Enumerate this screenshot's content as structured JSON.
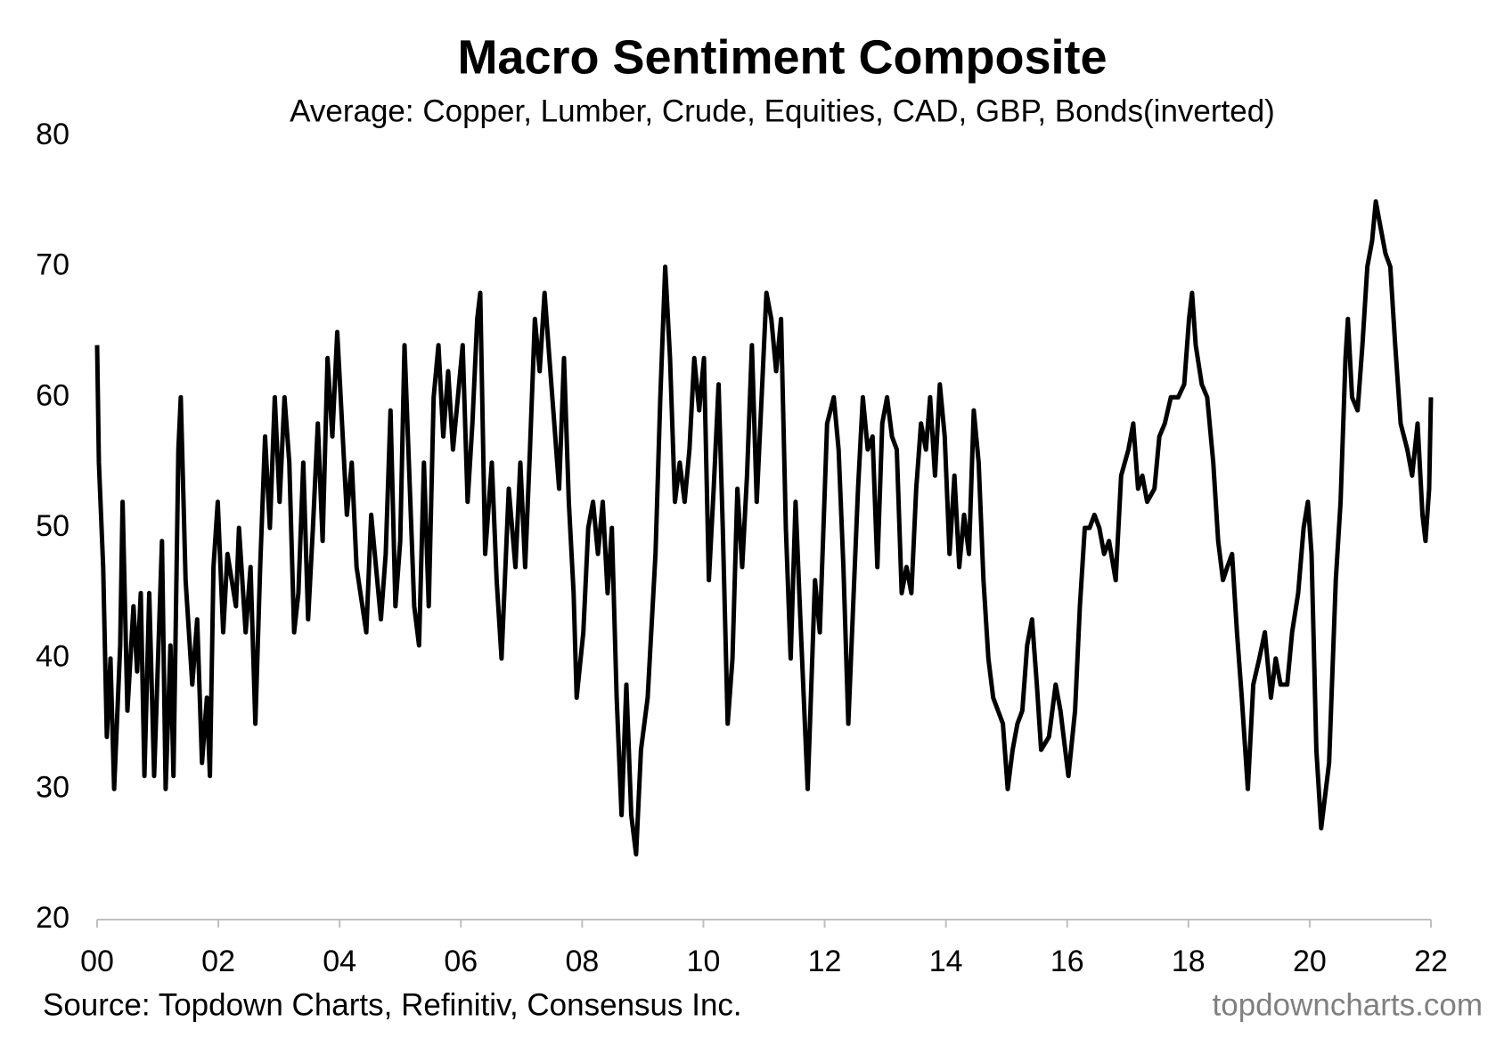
{
  "chart_data": {
    "type": "line",
    "title": "Macro Sentiment Composite",
    "subtitle": "Average:  Copper, Lumber, Crude, Equities, CAD, GBP, Bonds(inverted)",
    "source": "Source: Topdown Charts, Refinitiv, Consensus Inc.",
    "watermark": "topdowncharts.com",
    "xlim": [
      2000,
      2022
    ],
    "ylim": [
      20,
      80
    ],
    "yticks": [
      20,
      30,
      40,
      50,
      60,
      70,
      80
    ],
    "xticks": [
      {
        "value": 2000,
        "label": "00"
      },
      {
        "value": 2002,
        "label": "02"
      },
      {
        "value": 2004,
        "label": "04"
      },
      {
        "value": 2006,
        "label": "06"
      },
      {
        "value": 2008,
        "label": "08"
      },
      {
        "value": 2010,
        "label": "10"
      },
      {
        "value": 2012,
        "label": "12"
      },
      {
        "value": 2014,
        "label": "14"
      },
      {
        "value": 2016,
        "label": "16"
      },
      {
        "value": 2018,
        "label": "18"
      },
      {
        "value": 2020,
        "label": "20"
      },
      {
        "value": 2022,
        "label": "22"
      }
    ],
    "x": [
      2000,
      2000.03,
      2000.1,
      2000.16,
      2000.22,
      2000.28,
      2000.38,
      2000.42,
      2000.5,
      2000.6,
      2000.66,
      2000.72,
      2000.78,
      2000.86,
      2000.94,
      2001.07,
      2001.13,
      2001.21,
      2001.26,
      2001.34,
      2001.38,
      2001.46,
      2001.57,
      2001.65,
      2001.73,
      2001.81,
      2001.86,
      2001.92,
      2001.99,
      2002.08,
      2002.15,
      2002.29,
      2002.34,
      2002.45,
      2002.53,
      2002.61,
      2002.69,
      2002.77,
      2002.85,
      2002.93,
      2003.01,
      2003.09,
      2003.17,
      2003.25,
      2003.32,
      2003.4,
      2003.48,
      2003.56,
      2003.64,
      2003.72,
      2003.8,
      2003.88,
      2003.96,
      2004.04,
      2004.12,
      2004.2,
      2004.28,
      2004.44,
      2004.52,
      2004.6,
      2004.68,
      2004.76,
      2004.84,
      2004.92,
      2005.0,
      2005.07,
      2005.23,
      2005.31,
      2005.39,
      2005.47,
      2005.55,
      2005.63,
      2005.71,
      2005.79,
      2005.87,
      2005.95,
      2006.03,
      2006.11,
      2006.19,
      2006.27,
      2006.32,
      2006.4,
      2006.51,
      2006.59,
      2006.67,
      2006.79,
      2006.9,
      2006.98,
      2007.06,
      2007.14,
      2007.22,
      2007.3,
      2007.38,
      2007.46,
      2007.54,
      2007.62,
      2007.7,
      2007.78,
      2007.86,
      2007.91,
      2008.02,
      2008.1,
      2008.18,
      2008.26,
      2008.34,
      2008.42,
      2008.49,
      2008.57,
      2008.65,
      2008.73,
      2008.81,
      2008.89,
      2008.97,
      2009.08,
      2009.21,
      2009.29,
      2009.37,
      2009.45,
      2009.53,
      2009.61,
      2009.69,
      2009.77,
      2009.85,
      2009.93,
      2010.01,
      2010.09,
      2010.17,
      2010.25,
      2010.32,
      2010.4,
      2010.48,
      2010.56,
      2010.64,
      2010.72,
      2010.8,
      2010.88,
      2010.96,
      2011.04,
      2011.12,
      2011.2,
      2011.28,
      2011.36,
      2011.44,
      2011.52,
      2011.6,
      2011.72,
      2011.84,
      2011.92,
      2012.04,
      2012.15,
      2012.23,
      2012.31,
      2012.39,
      2012.47,
      2012.55,
      2012.63,
      2012.71,
      2012.79,
      2012.87,
      2012.95,
      2013.03,
      2013.11,
      2013.19,
      2013.27,
      2013.35,
      2013.43,
      2013.51,
      2013.59,
      2013.67,
      2013.74,
      2013.82,
      2013.9,
      2013.98,
      2014.06,
      2014.14,
      2014.22,
      2014.3,
      2014.38,
      2014.46,
      2014.54,
      2014.62,
      2014.7,
      2014.78,
      2014.94,
      2015.02,
      2015.1,
      2015.18,
      2015.26,
      2015.34,
      2015.42,
      2015.5,
      2015.57,
      2015.7,
      2015.81,
      2015.89,
      2016.02,
      2016.13,
      2016.21,
      2016.29,
      2016.37,
      2016.45,
      2016.53,
      2016.61,
      2016.69,
      2016.8,
      2016.89,
      2017.01,
      2017.09,
      2017.17,
      2017.24,
      2017.32,
      2017.44,
      2017.52,
      2017.61,
      2017.71,
      2017.83,
      2017.93,
      2018.01,
      2018.06,
      2018.12,
      2018.22,
      2018.31,
      2018.41,
      2018.49,
      2018.57,
      2018.64,
      2018.72,
      2018.8,
      2018.88,
      2018.98,
      2019.07,
      2019.17,
      2019.26,
      2019.36,
      2019.44,
      2019.52,
      2019.63,
      2019.71,
      2019.81,
      2019.9,
      2019.97,
      2020.03,
      2020.11,
      2020.19,
      2020.32,
      2020.43,
      2020.51,
      2020.59,
      2020.63,
      2020.7,
      2020.79,
      2020.87,
      2020.95,
      2021.03,
      2021.09,
      2021.17,
      2021.25,
      2021.33,
      2021.41,
      2021.5,
      2021.61,
      2021.69,
      2021.78,
      2021.86,
      2021.91,
      2021.97,
      2022.0
    ],
    "series": [
      {
        "name": "Macro Sentiment Composite",
        "color": "#000000",
        "values": [
          64,
          55,
          47,
          34,
          40,
          30,
          41,
          52,
          36,
          44,
          39,
          45,
          31,
          45,
          31,
          49,
          30,
          41,
          31,
          56,
          60,
          46,
          38,
          43,
          32,
          37,
          31,
          47,
          52,
          42,
          48,
          44,
          50,
          42,
          47,
          35,
          47,
          57,
          50,
          60,
          52,
          60,
          55,
          42,
          45,
          55,
          43,
          50,
          58,
          49,
          63,
          57,
          65,
          58,
          51,
          55,
          47,
          42,
          51,
          47,
          43,
          48,
          59,
          44,
          49,
          64,
          44,
          41,
          55,
          44,
          60,
          64,
          57,
          62,
          56,
          60,
          64,
          52,
          58,
          66,
          68,
          48,
          55,
          46,
          40,
          53,
          47,
          55,
          47,
          56,
          66,
          62,
          68,
          63,
          58,
          53,
          63,
          52,
          45,
          37,
          42,
          50,
          52,
          48,
          52,
          45,
          50,
          37,
          28,
          38,
          28,
          25,
          33,
          37,
          48,
          60,
          70,
          63,
          52,
          55,
          52,
          56,
          63,
          59,
          63,
          46,
          53,
          61,
          50,
          35,
          40,
          53,
          47,
          54,
          64,
          52,
          60,
          68,
          66,
          62,
          66,
          50,
          40,
          52,
          43,
          30,
          46,
          42,
          58,
          60,
          56,
          47,
          35,
          44,
          53,
          60,
          56,
          57,
          47,
          58,
          60,
          57,
          56,
          45,
          47,
          45,
          53,
          58,
          56,
          60,
          54,
          61,
          57,
          48,
          54,
          47,
          51,
          48,
          59,
          55,
          46,
          40,
          37,
          35,
          30,
          33,
          35,
          36,
          41,
          43,
          38,
          33,
          34,
          38,
          36,
          31,
          36,
          44,
          50,
          50,
          51,
          50,
          48,
          49,
          46,
          54,
          56,
          58,
          53,
          54,
          52,
          53,
          57,
          58,
          60,
          60,
          61,
          66,
          68,
          64,
          61,
          60,
          55,
          49,
          46,
          47,
          48,
          42,
          37,
          30,
          38,
          40,
          42,
          37,
          40,
          38,
          38,
          42,
          45,
          50,
          52,
          48,
          33,
          27,
          32,
          46,
          52,
          63,
          66,
          60,
          59,
          64,
          70,
          72,
          75,
          73,
          71,
          70,
          64,
          58,
          56,
          54,
          58,
          51,
          49,
          53,
          60
        ]
      }
    ]
  }
}
